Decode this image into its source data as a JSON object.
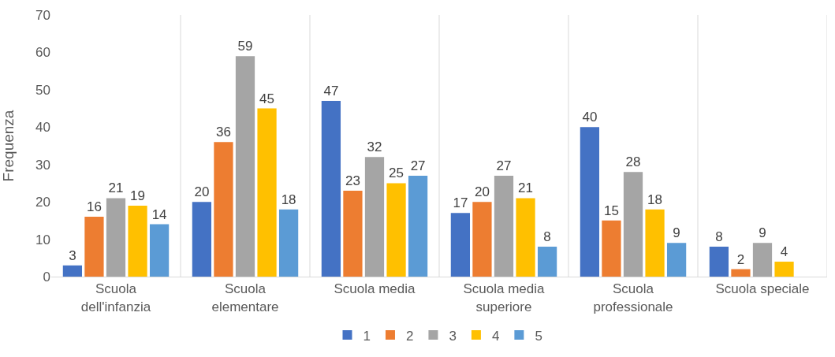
{
  "chart_data": {
    "type": "bar",
    "ylabel": "Frequenza",
    "categories": [
      "Scuola dell'infanzia",
      "Scuola elementare",
      "Scuola media",
      "Scuola media superiore",
      "Scuola professionale",
      "Scuola speciale"
    ],
    "series": [
      {
        "name": "1",
        "color": "#4472c4",
        "values": [
          3,
          20,
          47,
          17,
          40,
          8
        ]
      },
      {
        "name": "2",
        "color": "#ed7d31",
        "values": [
          16,
          36,
          23,
          20,
          15,
          2
        ]
      },
      {
        "name": "3",
        "color": "#a5a5a5",
        "values": [
          21,
          59,
          32,
          27,
          28,
          9
        ]
      },
      {
        "name": "4",
        "color": "#ffc000",
        "values": [
          19,
          45,
          25,
          21,
          18,
          4
        ]
      },
      {
        "name": "5",
        "color": "#5b9bd5",
        "values": [
          14,
          18,
          27,
          8,
          9,
          null
        ]
      }
    ],
    "ylim": [
      0,
      70
    ],
    "yticks": [
      0,
      10,
      20,
      30,
      40,
      50,
      60,
      70
    ],
    "grid": "x",
    "legend": "bottom",
    "data_labels": true
  }
}
